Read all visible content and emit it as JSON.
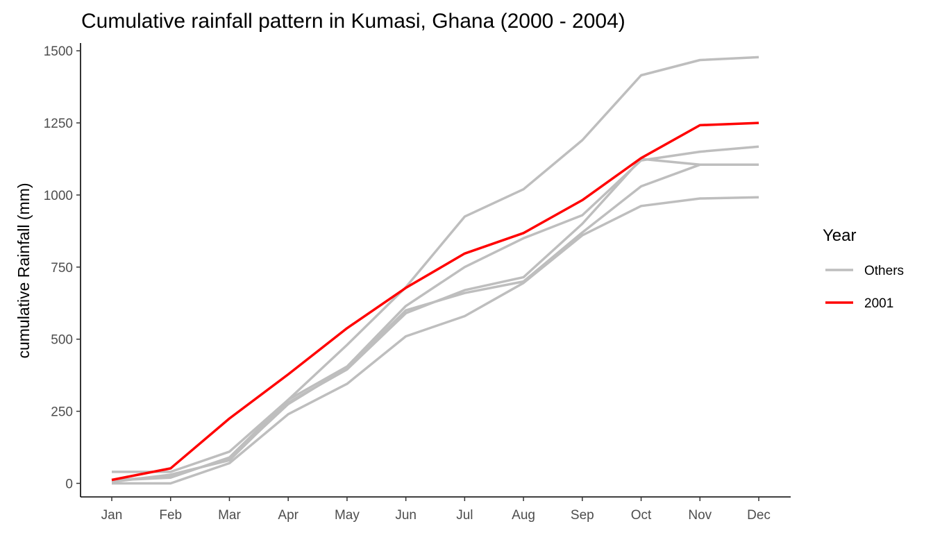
{
  "chart_data": {
    "type": "line",
    "title": "Cumulative rainfall pattern in Kumasi, Ghana (2000 - 2004)",
    "xlabel": "",
    "ylabel": "cumulative Rainfall (mm)",
    "categories": [
      "Jan",
      "Feb",
      "Mar",
      "Apr",
      "May",
      "Jun",
      "Jul",
      "Aug",
      "Sep",
      "Oct",
      "Nov",
      "Dec"
    ],
    "yticks": [
      0,
      250,
      500,
      750,
      1000,
      1250,
      1500
    ],
    "ytick_labels": [
      "0",
      "250",
      "500",
      "750",
      "1000",
      "1250",
      "1500"
    ],
    "ylim": [
      -47,
      1527
    ],
    "grid": false,
    "legend": {
      "title": "Year",
      "position": "right",
      "entries": [
        {
          "label": "Others",
          "color": "#bebebe"
        },
        {
          "label": "2001",
          "color": "#ff0000"
        }
      ]
    },
    "series": [
      {
        "name": "Others",
        "group": "Others",
        "color": "#bebebe",
        "values": [
          40,
          40,
          110,
          290,
          480,
          680,
          925,
          1020,
          1190,
          1415,
          1468,
          1478
        ]
      },
      {
        "name": "Others",
        "group": "Others",
        "color": "#bebebe",
        "values": [
          10,
          20,
          90,
          290,
          405,
          615,
          750,
          850,
          930,
          1120,
          1150,
          1168
        ]
      },
      {
        "name": "Others",
        "group": "Others",
        "color": "#bebebe",
        "values": [
          5,
          30,
          80,
          280,
          395,
          590,
          670,
          715,
          900,
          1125,
          1105,
          1105
        ]
      },
      {
        "name": "Others",
        "group": "Others",
        "color": "#bebebe",
        "values": [
          0,
          0,
          70,
          240,
          345,
          510,
          580,
          695,
          860,
          962,
          988,
          992
        ]
      },
      {
        "name": "Others",
        "group": "Others",
        "color": "#bebebe",
        "values": [
          10,
          25,
          85,
          275,
          400,
          600,
          660,
          700,
          870,
          1030,
          1105,
          1105
        ]
      },
      {
        "name": "2001",
        "group": "2001",
        "color": "#ff0000",
        "values": [
          12,
          52,
          225,
          378,
          538,
          678,
          797,
          868,
          982,
          1128,
          1242,
          1250
        ]
      }
    ]
  }
}
